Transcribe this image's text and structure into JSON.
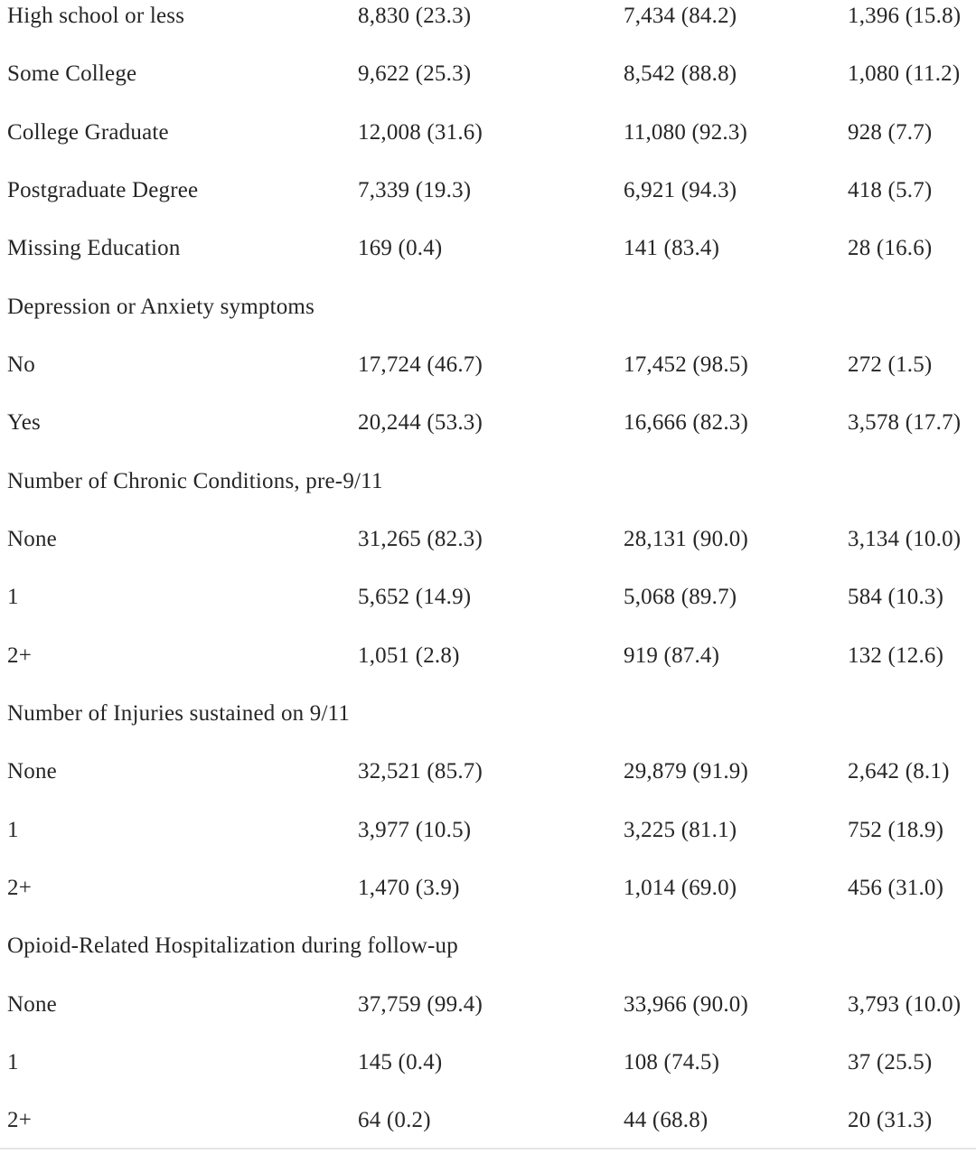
{
  "text_color": "#262626",
  "rule_color": "#e3e5e6",
  "background_color": "#ffffff",
  "table": {
    "rows": [
      {
        "section": false,
        "label": "High school or less",
        "cells": [
          "8,830 (23.3)",
          "7,434 (84.2)",
          "1,396 (15.8)"
        ]
      },
      {
        "section": false,
        "label": "Some College",
        "cells": [
          "9,622 (25.3)",
          "8,542 (88.8)",
          "1,080 (11.2)"
        ]
      },
      {
        "section": false,
        "label": "College Graduate",
        "cells": [
          "12,008 (31.6)",
          "11,080 (92.3)",
          "928 (7.7)"
        ]
      },
      {
        "section": false,
        "label": "Postgraduate Degree",
        "cells": [
          "7,339 (19.3)",
          "6,921 (94.3)",
          "418 (5.7)"
        ]
      },
      {
        "section": false,
        "label": "Missing Education",
        "cells": [
          "169 (0.4)",
          "141 (83.4)",
          "28 (16.6)"
        ]
      },
      {
        "section": true,
        "label": "Depression or Anxiety symptoms",
        "cells": [
          "",
          "",
          ""
        ]
      },
      {
        "section": false,
        "label": "No",
        "cells": [
          "17,724 (46.7)",
          "17,452 (98.5)",
          "272 (1.5)"
        ]
      },
      {
        "section": false,
        "label": "Yes",
        "cells": [
          "20,244 (53.3)",
          "16,666 (82.3)",
          "3,578 (17.7)"
        ]
      },
      {
        "section": true,
        "label": "Number of Chronic Conditions, pre-9/11",
        "cells": [
          "",
          "",
          ""
        ]
      },
      {
        "section": false,
        "label": "None",
        "cells": [
          "31,265 (82.3)",
          "28,131 (90.0)",
          "3,134 (10.0)"
        ]
      },
      {
        "section": false,
        "label": "1",
        "cells": [
          "5,652 (14.9)",
          "5,068 (89.7)",
          "584 (10.3)"
        ]
      },
      {
        "section": false,
        "label": "2+",
        "cells": [
          "1,051 (2.8)",
          "919 (87.4)",
          "132 (12.6)"
        ]
      },
      {
        "section": true,
        "label": "Number of Injuries sustained on 9/11",
        "cells": [
          "",
          "",
          ""
        ]
      },
      {
        "section": false,
        "label": "None",
        "cells": [
          "32,521 (85.7)",
          "29,879 (91.9)",
          "2,642 (8.1)"
        ]
      },
      {
        "section": false,
        "label": "1",
        "cells": [
          "3,977 (10.5)",
          "3,225 (81.1)",
          "752 (18.9)"
        ]
      },
      {
        "section": false,
        "label": "2+",
        "cells": [
          "1,470 (3.9)",
          "1,014 (69.0)",
          "456 (31.0)"
        ]
      },
      {
        "section": true,
        "label": "Opioid-Related Hospitalization during follow-up",
        "cells": [
          "",
          "",
          ""
        ]
      },
      {
        "section": false,
        "label": "None",
        "cells": [
          "37,759 (99.4)",
          "33,966 (90.0)",
          "3,793 (10.0)"
        ]
      },
      {
        "section": false,
        "label": "1",
        "cells": [
          "145 (0.4)",
          "108 (74.5)",
          "37 (25.5)"
        ]
      },
      {
        "section": false,
        "label": "2+",
        "cells": [
          "64 (0.2)",
          "44 (68.8)",
          "20 (31.3)"
        ]
      }
    ]
  }
}
